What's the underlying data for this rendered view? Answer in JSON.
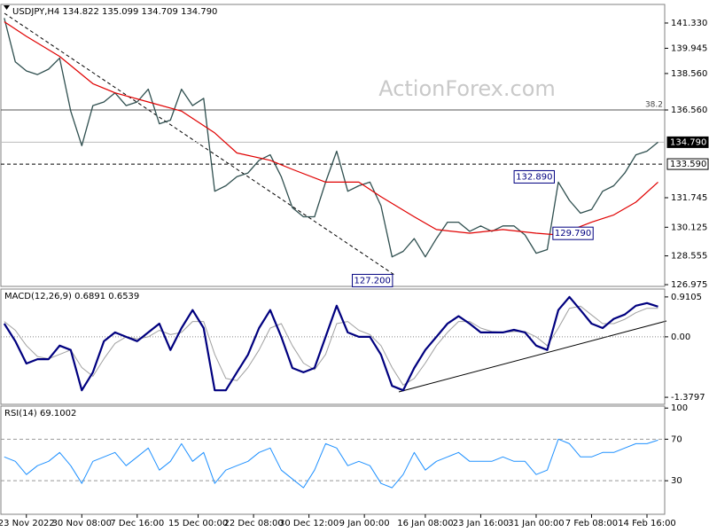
{
  "chart_data": [
    {
      "type": "line",
      "title": "USDJPY,H4  134.822 135.099 134.709 134.790",
      "watermark": "ActionForex.com",
      "xlim": [
        -0.3,
        59.6
      ],
      "ylim": [
        126.88,
        142.35
      ],
      "yticks": [
        {
          "value": 141.33,
          "label": "141.330"
        },
        139.945,
        {
          "value": 138.56,
          "label": "138.560"
        },
        {
          "value": 136.56,
          "label": "136.560"
        },
        131.745,
        130.125,
        128.555,
        126.975
      ],
      "x": [
        0,
        1,
        2,
        3,
        4,
        5,
        6,
        7,
        8,
        9,
        10,
        11,
        12,
        13,
        14,
        15,
        16,
        17,
        18,
        19,
        20,
        21,
        22,
        23,
        24,
        25,
        26,
        27,
        28,
        29,
        30,
        31,
        32,
        33,
        34,
        35,
        36,
        37,
        38,
        39,
        40,
        41,
        42,
        43,
        44,
        45,
        46,
        47,
        48,
        49,
        50,
        51,
        52,
        53,
        54,
        55,
        56,
        57,
        58,
        59
      ],
      "series": [
        {
          "color": "#2f4f4f",
          "width": 1.3,
          "values": [
            141.6,
            139.2,
            138.7,
            138.5,
            138.8,
            139.4,
            136.5,
            134.6,
            136.8,
            137.0,
            137.5,
            136.8,
            137.0,
            137.7,
            135.8,
            136.0,
            137.7,
            136.8,
            137.2,
            132.1,
            132.4,
            132.9,
            133.1,
            133.8,
            134.1,
            132.9,
            131.2,
            130.7,
            130.7,
            132.6,
            134.3,
            132.1,
            132.4,
            132.6,
            131.3,
            128.5,
            128.8,
            129.5,
            128.5,
            129.5,
            130.4,
            130.4,
            129.9,
            130.2,
            129.9,
            130.2,
            130.2,
            129.7,
            128.7,
            128.9,
            132.6,
            131.6,
            130.9,
            131.1,
            132.1,
            132.4,
            133.1,
            134.1,
            134.3,
            134.79
          ]
        },
        {
          "color": "#e00000",
          "width": 1.2,
          "x": [
            0,
            2,
            5,
            8,
            10,
            13,
            16,
            19,
            21,
            24,
            26,
            29,
            32,
            34,
            37,
            39,
            42,
            45,
            48,
            50,
            53,
            55,
            57,
            59
          ],
          "values": [
            141.4,
            140.6,
            139.5,
            138.0,
            137.5,
            137.0,
            136.5,
            135.3,
            134.2,
            133.8,
            133.3,
            132.6,
            132.6,
            131.8,
            130.7,
            130.0,
            129.8,
            130.0,
            129.8,
            129.7,
            130.4,
            130.8,
            131.5,
            132.6
          ]
        }
      ],
      "levels": [
        {
          "value": 136.56,
          "name": "38.2",
          "color": "#555",
          "style": "solid"
        },
        {
          "value": 134.79,
          "label": "134.790",
          "color": "#bbb",
          "style": "solid",
          "box": "dark"
        },
        {
          "value": 133.59,
          "label": "133.590",
          "color": "#000",
          "style": "dashed",
          "box": "light"
        }
      ],
      "callouts": [
        {
          "x": 35.2,
          "value": 127.2,
          "label": "127.200"
        },
        {
          "x": 49.8,
          "value": 132.89,
          "label": "132.890"
        },
        {
          "x": 53.3,
          "value": 129.79,
          "label": "129.790"
        }
      ]
    },
    {
      "type": "line",
      "title": "MACD(12,26,9) 0.6891 0.6539",
      "xlim": [
        -0.3,
        59.6
      ],
      "ylim": [
        -1.54,
        1.09
      ],
      "yticks": [
        0.9105,
        {
          "value": 0,
          "label": "0.00"
        },
        -1.3797
      ],
      "x": [
        0,
        1,
        2,
        3,
        4,
        5,
        6,
        7,
        8,
        9,
        10,
        11,
        12,
        13,
        14,
        15,
        16,
        17,
        18,
        19,
        20,
        21,
        22,
        23,
        24,
        25,
        26,
        27,
        28,
        29,
        30,
        31,
        32,
        33,
        34,
        35,
        36,
        37,
        38,
        39,
        40,
        41,
        42,
        43,
        44,
        45,
        46,
        47,
        48,
        49,
        50,
        51,
        52,
        53,
        54,
        55,
        56,
        57,
        58,
        59
      ],
      "series": [
        {
          "color": "#a0a0a0",
          "width": 1,
          "values": [
            0.35,
            0.15,
            -0.2,
            -0.45,
            -0.5,
            -0.4,
            -0.3,
            -0.7,
            -0.9,
            -0.5,
            -0.15,
            0.0,
            -0.05,
            0.0,
            0.15,
            0.05,
            0.1,
            0.35,
            0.35,
            -0.4,
            -0.95,
            -1.0,
            -0.7,
            -0.3,
            0.2,
            0.3,
            -0.2,
            -0.6,
            -0.75,
            -0.4,
            0.3,
            0.35,
            0.15,
            0.05,
            -0.2,
            -0.7,
            -1.1,
            -0.95,
            -0.6,
            -0.2,
            0.1,
            0.35,
            0.35,
            0.2,
            0.12,
            0.1,
            0.12,
            0.12,
            0.0,
            -0.2,
            0.2,
            0.65,
            0.7,
            0.5,
            0.3,
            0.3,
            0.4,
            0.55,
            0.65,
            0.65
          ]
        },
        {
          "color": "#00007f",
          "width": 2.2,
          "values": [
            0.3,
            -0.1,
            -0.61,
            -0.51,
            -0.51,
            -0.2,
            -0.3,
            -1.22,
            -0.81,
            -0.1,
            0.1,
            0.0,
            -0.1,
            0.1,
            0.3,
            -0.3,
            0.2,
            0.61,
            0.2,
            -1.22,
            -1.22,
            -0.81,
            -0.41,
            0.2,
            0.61,
            0.0,
            -0.71,
            -0.81,
            -0.71,
            0.0,
            0.71,
            0.1,
            0.0,
            0.0,
            -0.41,
            -1.12,
            -1.22,
            -0.71,
            -0.3,
            0.0,
            0.3,
            0.47,
            0.3,
            0.1,
            0.1,
            0.1,
            0.16,
            0.1,
            -0.2,
            -0.3,
            0.61,
            0.91,
            0.61,
            0.3,
            0.2,
            0.41,
            0.51,
            0.71,
            0.77,
            0.69
          ]
        }
      ],
      "levels": [
        {
          "value": 0,
          "color": "#888",
          "style": "dotted"
        }
      ]
    },
    {
      "type": "line",
      "title": "RSI(14) 69.1002",
      "xlim": [
        -0.3,
        59.6
      ],
      "ylim": [
        -2.3,
        101.9
      ],
      "yticks": [
        100,
        70,
        30
      ],
      "xticks": [
        {
          "value": 2,
          "label": "23 Nov 2022"
        },
        {
          "value": 7,
          "label": "30 Nov 08:00"
        },
        {
          "value": 12,
          "label": "7 Dec 16:00"
        },
        {
          "value": 17.5,
          "label": "15 Dec 00:00"
        },
        {
          "value": 22.5,
          "label": "22 Dec 08:00"
        },
        {
          "value": 27.5,
          "label": "30 Dec 12:00"
        },
        {
          "value": 32.5,
          "label": "9 Jan 00:00"
        },
        {
          "value": 38,
          "label": "16 Jan 08:00"
        },
        {
          "value": 43,
          "label": "23 Jan 16:00"
        },
        {
          "value": 48,
          "label": "31 Jan 00:00"
        },
        {
          "value": 53,
          "label": "7 Feb 08:00"
        },
        {
          "value": 58,
          "label": "14 Feb 16:00"
        }
      ],
      "x": [
        0,
        1,
        2,
        3,
        4,
        5,
        6,
        7,
        8,
        9,
        10,
        11,
        12,
        13,
        14,
        15,
        16,
        17,
        18,
        19,
        20,
        21,
        22,
        23,
        24,
        25,
        26,
        27,
        28,
        29,
        30,
        31,
        32,
        33,
        34,
        35,
        36,
        37,
        38,
        39,
        40,
        41,
        42,
        43,
        44,
        45,
        46,
        47,
        48,
        49,
        50,
        51,
        52,
        53,
        54,
        55,
        56,
        57,
        58,
        59
      ],
      "series": [
        {
          "color": "#1e90ff",
          "width": 1,
          "values": [
            53.0,
            48.7,
            36.0,
            44.5,
            48.7,
            57.2,
            44.5,
            27.4,
            48.7,
            53.0,
            57.2,
            44.5,
            53.0,
            61.5,
            40.2,
            48.7,
            65.7,
            48.7,
            57.2,
            27.4,
            40.2,
            44.5,
            48.7,
            57.2,
            61.5,
            40.2,
            31.7,
            23.2,
            40.2,
            65.7,
            61.5,
            44.5,
            48.7,
            44.5,
            27.4,
            23.2,
            36.0,
            57.2,
            40.2,
            48.7,
            53.0,
            57.2,
            48.7,
            48.7,
            48.7,
            53.0,
            48.7,
            48.7,
            36.0,
            40.2,
            70.0,
            65.7,
            53.0,
            53.0,
            57.2,
            57.2,
            61.5,
            65.7,
            65.7,
            69.1
          ]
        }
      ],
      "levels": [
        {
          "value": 70,
          "color": "#999",
          "style": "dashed"
        },
        {
          "value": 30,
          "color": "#999",
          "style": "dashed"
        }
      ]
    }
  ]
}
